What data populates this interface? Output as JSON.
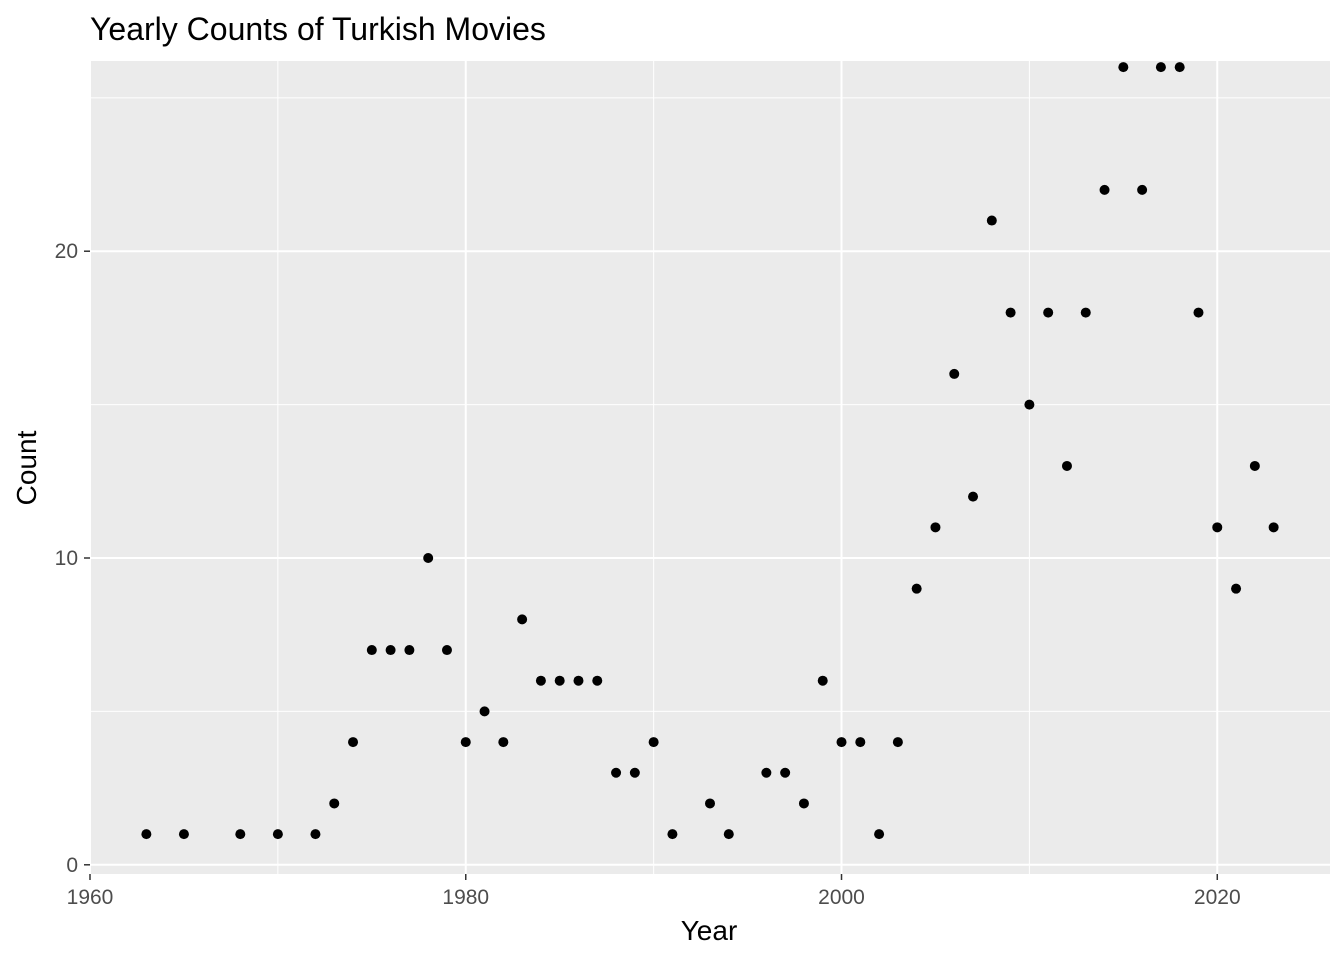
{
  "chart_data": {
    "type": "scatter",
    "title": "Yearly Counts of Turkish Movies",
    "xlabel": "Year",
    "ylabel": "Count",
    "xlim": [
      1960,
      2026
    ],
    "ylim": [
      -0.3,
      26.2
    ],
    "x_ticks": [
      1960,
      1980,
      2000,
      2020
    ],
    "y_ticks": [
      0,
      10,
      20
    ],
    "grid": true,
    "point_color": "#000000",
    "panel_color": "#EBEBEB",
    "grid_color": "#FFFFFF",
    "points": [
      {
        "x": 1963,
        "y": 1
      },
      {
        "x": 1965,
        "y": 1
      },
      {
        "x": 1968,
        "y": 1
      },
      {
        "x": 1970,
        "y": 1
      },
      {
        "x": 1972,
        "y": 1
      },
      {
        "x": 1973,
        "y": 2
      },
      {
        "x": 1974,
        "y": 4
      },
      {
        "x": 1975,
        "y": 7
      },
      {
        "x": 1976,
        "y": 7
      },
      {
        "x": 1977,
        "y": 7
      },
      {
        "x": 1978,
        "y": 10
      },
      {
        "x": 1979,
        "y": 7
      },
      {
        "x": 1980,
        "y": 4
      },
      {
        "x": 1981,
        "y": 5
      },
      {
        "x": 1982,
        "y": 4
      },
      {
        "x": 1983,
        "y": 8
      },
      {
        "x": 1984,
        "y": 6
      },
      {
        "x": 1985,
        "y": 6
      },
      {
        "x": 1986,
        "y": 6
      },
      {
        "x": 1987,
        "y": 6
      },
      {
        "x": 1988,
        "y": 3
      },
      {
        "x": 1989,
        "y": 3
      },
      {
        "x": 1990,
        "y": 4
      },
      {
        "x": 1991,
        "y": 1
      },
      {
        "x": 1993,
        "y": 2
      },
      {
        "x": 1994,
        "y": 1
      },
      {
        "x": 1996,
        "y": 3
      },
      {
        "x": 1997,
        "y": 3
      },
      {
        "x": 1998,
        "y": 2
      },
      {
        "x": 1999,
        "y": 6
      },
      {
        "x": 2000,
        "y": 4
      },
      {
        "x": 2001,
        "y": 4
      },
      {
        "x": 2002,
        "y": 1
      },
      {
        "x": 2003,
        "y": 4
      },
      {
        "x": 2004,
        "y": 9
      },
      {
        "x": 2005,
        "y": 11
      },
      {
        "x": 2006,
        "y": 16
      },
      {
        "x": 2007,
        "y": 12
      },
      {
        "x": 2008,
        "y": 21
      },
      {
        "x": 2009,
        "y": 18
      },
      {
        "x": 2010,
        "y": 15
      },
      {
        "x": 2011,
        "y": 18
      },
      {
        "x": 2012,
        "y": 13
      },
      {
        "x": 2013,
        "y": 18
      },
      {
        "x": 2014,
        "y": 22
      },
      {
        "x": 2015,
        "y": 26
      },
      {
        "x": 2016,
        "y": 22
      },
      {
        "x": 2017,
        "y": 26
      },
      {
        "x": 2018,
        "y": 26
      },
      {
        "x": 2019,
        "y": 18
      },
      {
        "x": 2020,
        "y": 11
      },
      {
        "x": 2021,
        "y": 9
      },
      {
        "x": 2022,
        "y": 13
      },
      {
        "x": 2023,
        "y": 11
      }
    ]
  }
}
